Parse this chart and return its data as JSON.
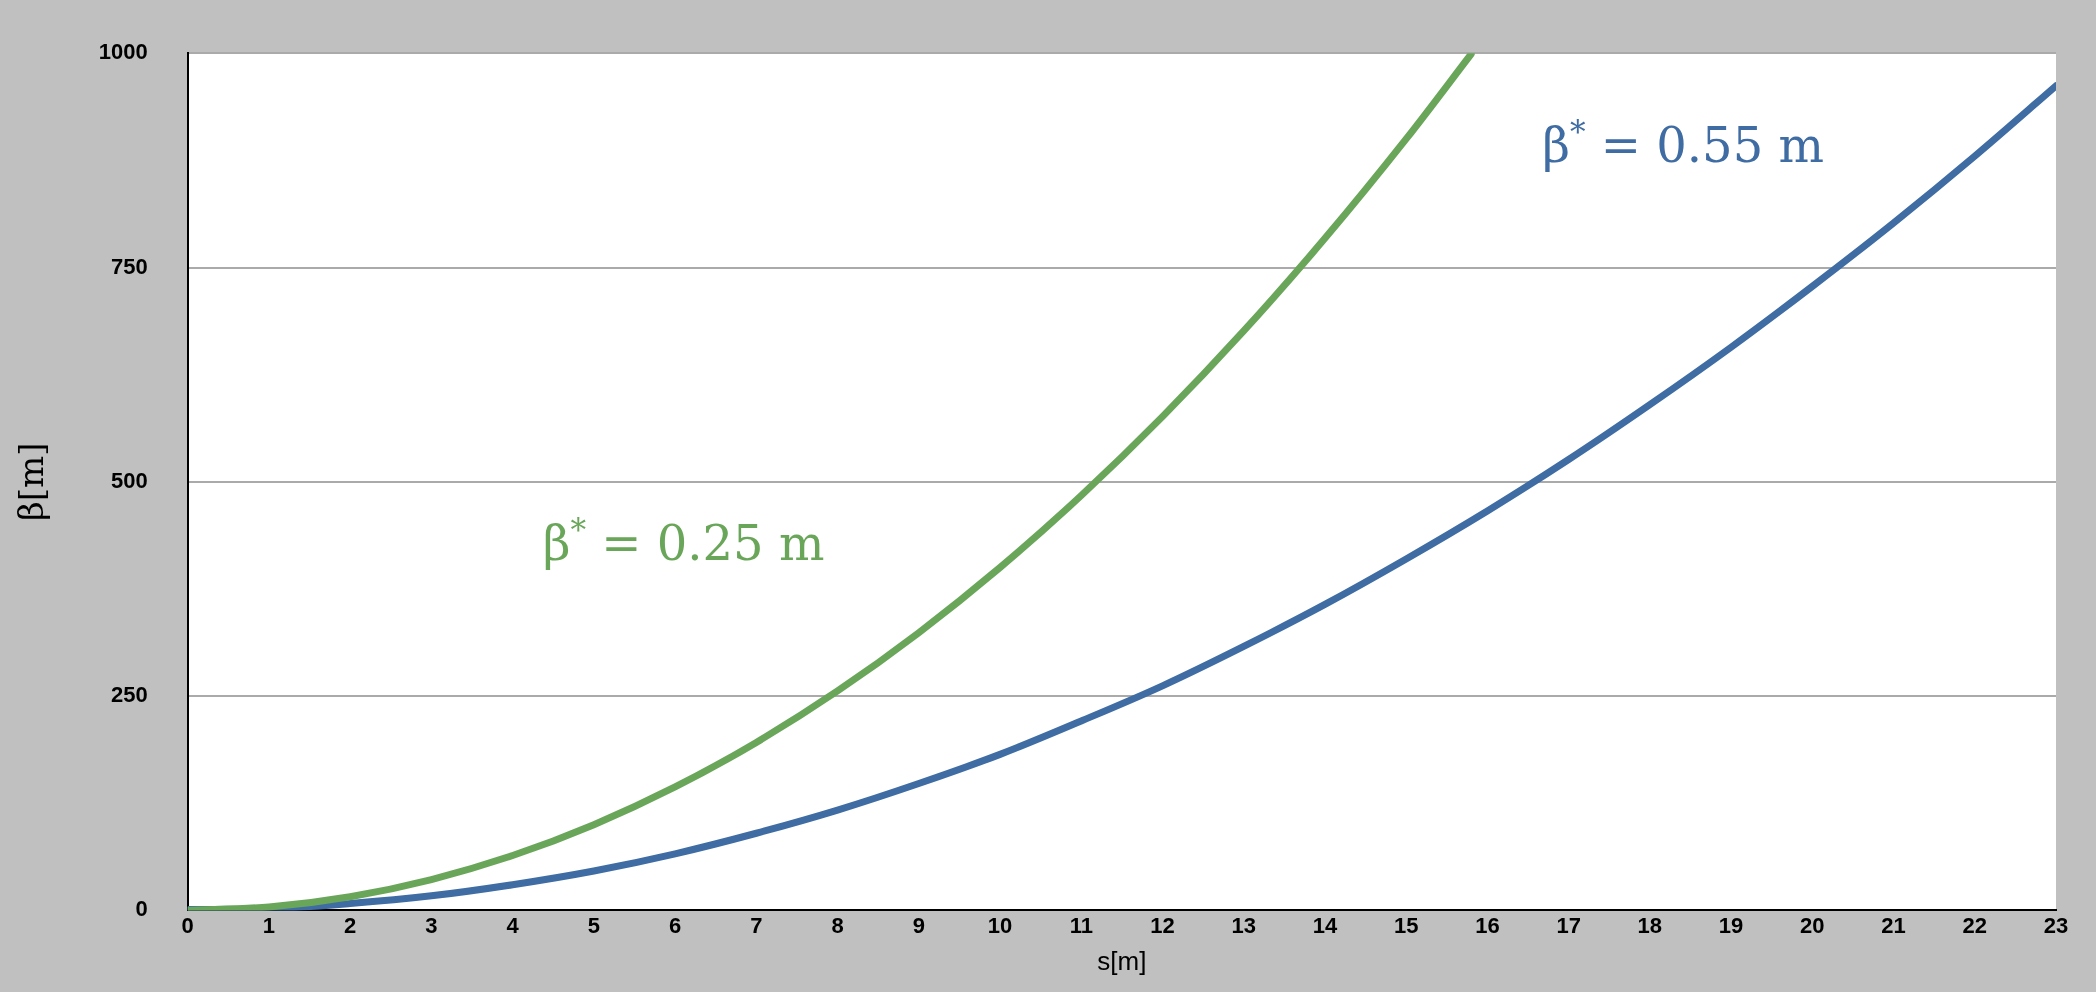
{
  "chart_data": {
    "type": "line",
    "xlabel": "s[m]",
    "ylabel": "β[m]",
    "xlim": [
      0,
      23
    ],
    "xticks": [
      0,
      1,
      2,
      3,
      4,
      5,
      6,
      7,
      8,
      9,
      10,
      11,
      12,
      13,
      14,
      15,
      16,
      17,
      18,
      19,
      20,
      21,
      22,
      23
    ],
    "ylim": [
      0,
      1000
    ],
    "yticks": [
      0,
      250,
      500,
      750,
      1000
    ],
    "grid": "y",
    "legend": false,
    "marker": "none",
    "line_style": "solid",
    "series": [
      {
        "name": "β$^{*}$ = 0.25 m",
        "color": "#6aa65a",
        "x": [
          0,
          1,
          2,
          3,
          4,
          5,
          6,
          7,
          8,
          9,
          10,
          11,
          12,
          13,
          14,
          15,
          15.8
        ],
        "values": [
          0,
          4,
          16,
          36,
          64,
          100,
          144,
          196,
          256,
          324,
          400,
          484,
          576,
          676,
          784,
          900,
          999
        ]
      },
      {
        "name": "β$^{*}$ = 0.55 m",
        "color": "#3e6ca3",
        "x": [
          0,
          1,
          2,
          3,
          4,
          5,
          6,
          7,
          8,
          9,
          10,
          11,
          12,
          13,
          14,
          15,
          16,
          17,
          18,
          19,
          20,
          21,
          22,
          23
        ],
        "values": [
          1,
          2,
          8,
          17,
          30,
          46,
          66,
          90,
          117,
          148,
          182,
          221,
          262,
          308,
          357,
          410,
          466,
          526,
          590,
          657,
          728,
          802,
          880,
          962
        ]
      }
    ]
  }
}
